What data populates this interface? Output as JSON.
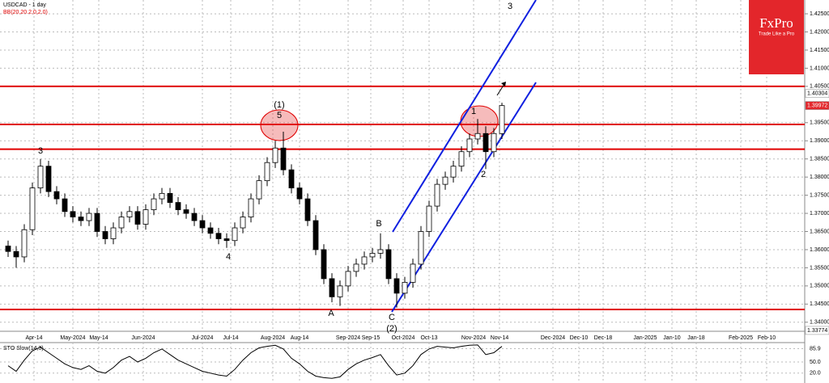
{
  "chart_data": [
    {
      "type": "candlestick",
      "title": "USDCAD - 1 day",
      "subtitle": "BB(20,20.2,0,2.0)",
      "open": [
        1.361,
        1.3595,
        1.358,
        1.3655,
        1.377,
        1.383,
        1.376,
        1.374,
        1.3705,
        1.369,
        1.368,
        1.37,
        1.365,
        1.363,
        1.366,
        1.369,
        1.3705,
        1.367,
        1.371,
        1.374,
        1.3755,
        1.373,
        1.371,
        1.37,
        1.368,
        1.366,
        1.3645,
        1.363,
        1.3625,
        1.366,
        1.369,
        1.374,
        1.379,
        1.384,
        1.388,
        1.382,
        1.377,
        1.374,
        1.368,
        1.36,
        1.352,
        1.347,
        1.35,
        1.354,
        1.356,
        1.358,
        1.359,
        1.36,
        1.352,
        1.348,
        1.351,
        1.356,
        1.365,
        1.372,
        1.378,
        1.38,
        1.383,
        1.387,
        1.3905,
        1.392,
        1.387,
        1.392
      ],
      "high": [
        1.3625,
        1.361,
        1.367,
        1.3785,
        1.385,
        1.3845,
        1.3775,
        1.3755,
        1.372,
        1.3705,
        1.3715,
        1.3715,
        1.3665,
        1.3675,
        1.3705,
        1.372,
        1.372,
        1.3725,
        1.3755,
        1.377,
        1.377,
        1.3745,
        1.3725,
        1.3715,
        1.3695,
        1.3675,
        1.366,
        1.3645,
        1.3675,
        1.3705,
        1.3755,
        1.3805,
        1.3855,
        1.39,
        1.3925,
        1.3835,
        1.3785,
        1.3755,
        1.3695,
        1.3615,
        1.3535,
        1.3515,
        1.3555,
        1.3575,
        1.3595,
        1.3605,
        1.3645,
        1.3615,
        1.3535,
        1.3525,
        1.3575,
        1.3665,
        1.3735,
        1.3795,
        1.3815,
        1.3845,
        1.3885,
        1.392,
        1.396,
        1.394,
        1.3935,
        1.4005
      ],
      "low": [
        1.358,
        1.355,
        1.3565,
        1.364,
        1.3755,
        1.3745,
        1.3725,
        1.369,
        1.3675,
        1.3665,
        1.3665,
        1.3635,
        1.3615,
        1.3615,
        1.3645,
        1.3675,
        1.3655,
        1.3655,
        1.3695,
        1.3725,
        1.3715,
        1.3695,
        1.3685,
        1.3665,
        1.3645,
        1.363,
        1.3615,
        1.3605,
        1.361,
        1.3645,
        1.3675,
        1.3725,
        1.3775,
        1.3825,
        1.3805,
        1.3755,
        1.3725,
        1.3665,
        1.3585,
        1.3505,
        1.3455,
        1.3445,
        1.3485,
        1.3525,
        1.3545,
        1.3565,
        1.3575,
        1.3505,
        1.344,
        1.3465,
        1.3495,
        1.3545,
        1.3635,
        1.3705,
        1.3765,
        1.3785,
        1.3815,
        1.3855,
        1.389,
        1.3822,
        1.3855,
        1.3905
      ],
      "close": [
        1.3595,
        1.358,
        1.3655,
        1.377,
        1.383,
        1.376,
        1.374,
        1.3705,
        1.369,
        1.368,
        1.37,
        1.365,
        1.363,
        1.366,
        1.369,
        1.3705,
        1.367,
        1.371,
        1.374,
        1.3755,
        1.373,
        1.371,
        1.37,
        1.368,
        1.366,
        1.3645,
        1.363,
        1.3625,
        1.366,
        1.369,
        1.374,
        1.379,
        1.384,
        1.388,
        1.382,
        1.377,
        1.374,
        1.368,
        1.36,
        1.352,
        1.347,
        1.35,
        1.354,
        1.356,
        1.358,
        1.359,
        1.36,
        1.352,
        1.348,
        1.351,
        1.356,
        1.365,
        1.372,
        1.378,
        1.38,
        1.383,
        1.387,
        1.3905,
        1.392,
        1.387,
        1.392,
        1.3997
      ],
      "up_color": "#ffffff",
      "down_color": "#000000",
      "ylim": [
        1.3375,
        1.4288
      ],
      "yticks": [
        {
          "value": 1.425,
          "label": "1.42500"
        },
        {
          "value": 1.42,
          "label": "1.42000"
        },
        {
          "value": 1.415,
          "label": "1.41500"
        },
        {
          "value": 1.41,
          "label": "1.41000"
        },
        {
          "value": 1.405,
          "label": "1.40500"
        },
        {
          "value": 1.395,
          "label": "1.39500"
        },
        {
          "value": 1.39,
          "label": "1.39000"
        },
        {
          "value": 1.385,
          "label": "1.38500"
        },
        {
          "value": 1.38,
          "label": "1.38000"
        },
        {
          "value": 1.375,
          "label": "1.37500"
        },
        {
          "value": 1.37,
          "label": "1.37000"
        },
        {
          "value": 1.365,
          "label": "1.36500"
        },
        {
          "value": 1.36,
          "label": "1.36000"
        },
        {
          "value": 1.355,
          "label": "1.35500"
        },
        {
          "value": 1.35,
          "label": "1.35000"
        },
        {
          "value": 1.345,
          "label": "1.34500"
        },
        {
          "value": 1.34,
          "label": "1.34000"
        }
      ],
      "price_markers": [
        1.40304,
        1.39972,
        1.33774
      ],
      "levels": [
        1.405,
        1.3945,
        1.3877,
        1.3435
      ],
      "level_color": "#e00000",
      "x_labels": [
        "Apr-14",
        "May-2024",
        "May-14",
        "Jun-2024",
        "Jul-2024",
        "Jul-14",
        "Aug-2024",
        "Aug-14",
        "Sep-2024",
        "Sep-15",
        "Oct-2024",
        "Oct-13",
        "Nov-2024",
        "Nov-14",
        "Dec-2024",
        "Dec-10",
        "Dec-18",
        "Jan-2025",
        "Jan-10",
        "Jan-18",
        "Feb-2025",
        "Feb-10"
      ],
      "annotations": [
        "3",
        "4",
        "(1)",
        "5",
        "A",
        "B",
        "C",
        "(2)",
        "1",
        "2",
        "3"
      ],
      "grid": true
    },
    {
      "type": "line",
      "title": "STO Slow(14,3)",
      "values": [
        40,
        25,
        55,
        80,
        90,
        75,
        60,
        45,
        35,
        30,
        40,
        25,
        20,
        35,
        55,
        65,
        50,
        60,
        75,
        85,
        70,
        55,
        45,
        35,
        25,
        20,
        15,
        12,
        30,
        55,
        75,
        88,
        92,
        95,
        85,
        60,
        45,
        25,
        12,
        8,
        6,
        10,
        30,
        45,
        55,
        62,
        70,
        40,
        15,
        20,
        40,
        70,
        85,
        92,
        90,
        88,
        92,
        95,
        96,
        70,
        75,
        92
      ],
      "color": "#000000",
      "ylim": [
        0,
        100
      ],
      "yticks": [
        85.9,
        {
          "value": 50,
          "label": "50.0"
        },
        {
          "value": 20,
          "label": "20.0"
        }
      ]
    }
  ],
  "logo": {
    "name": "FxPro",
    "tagline": "Trade Like a Pro"
  }
}
